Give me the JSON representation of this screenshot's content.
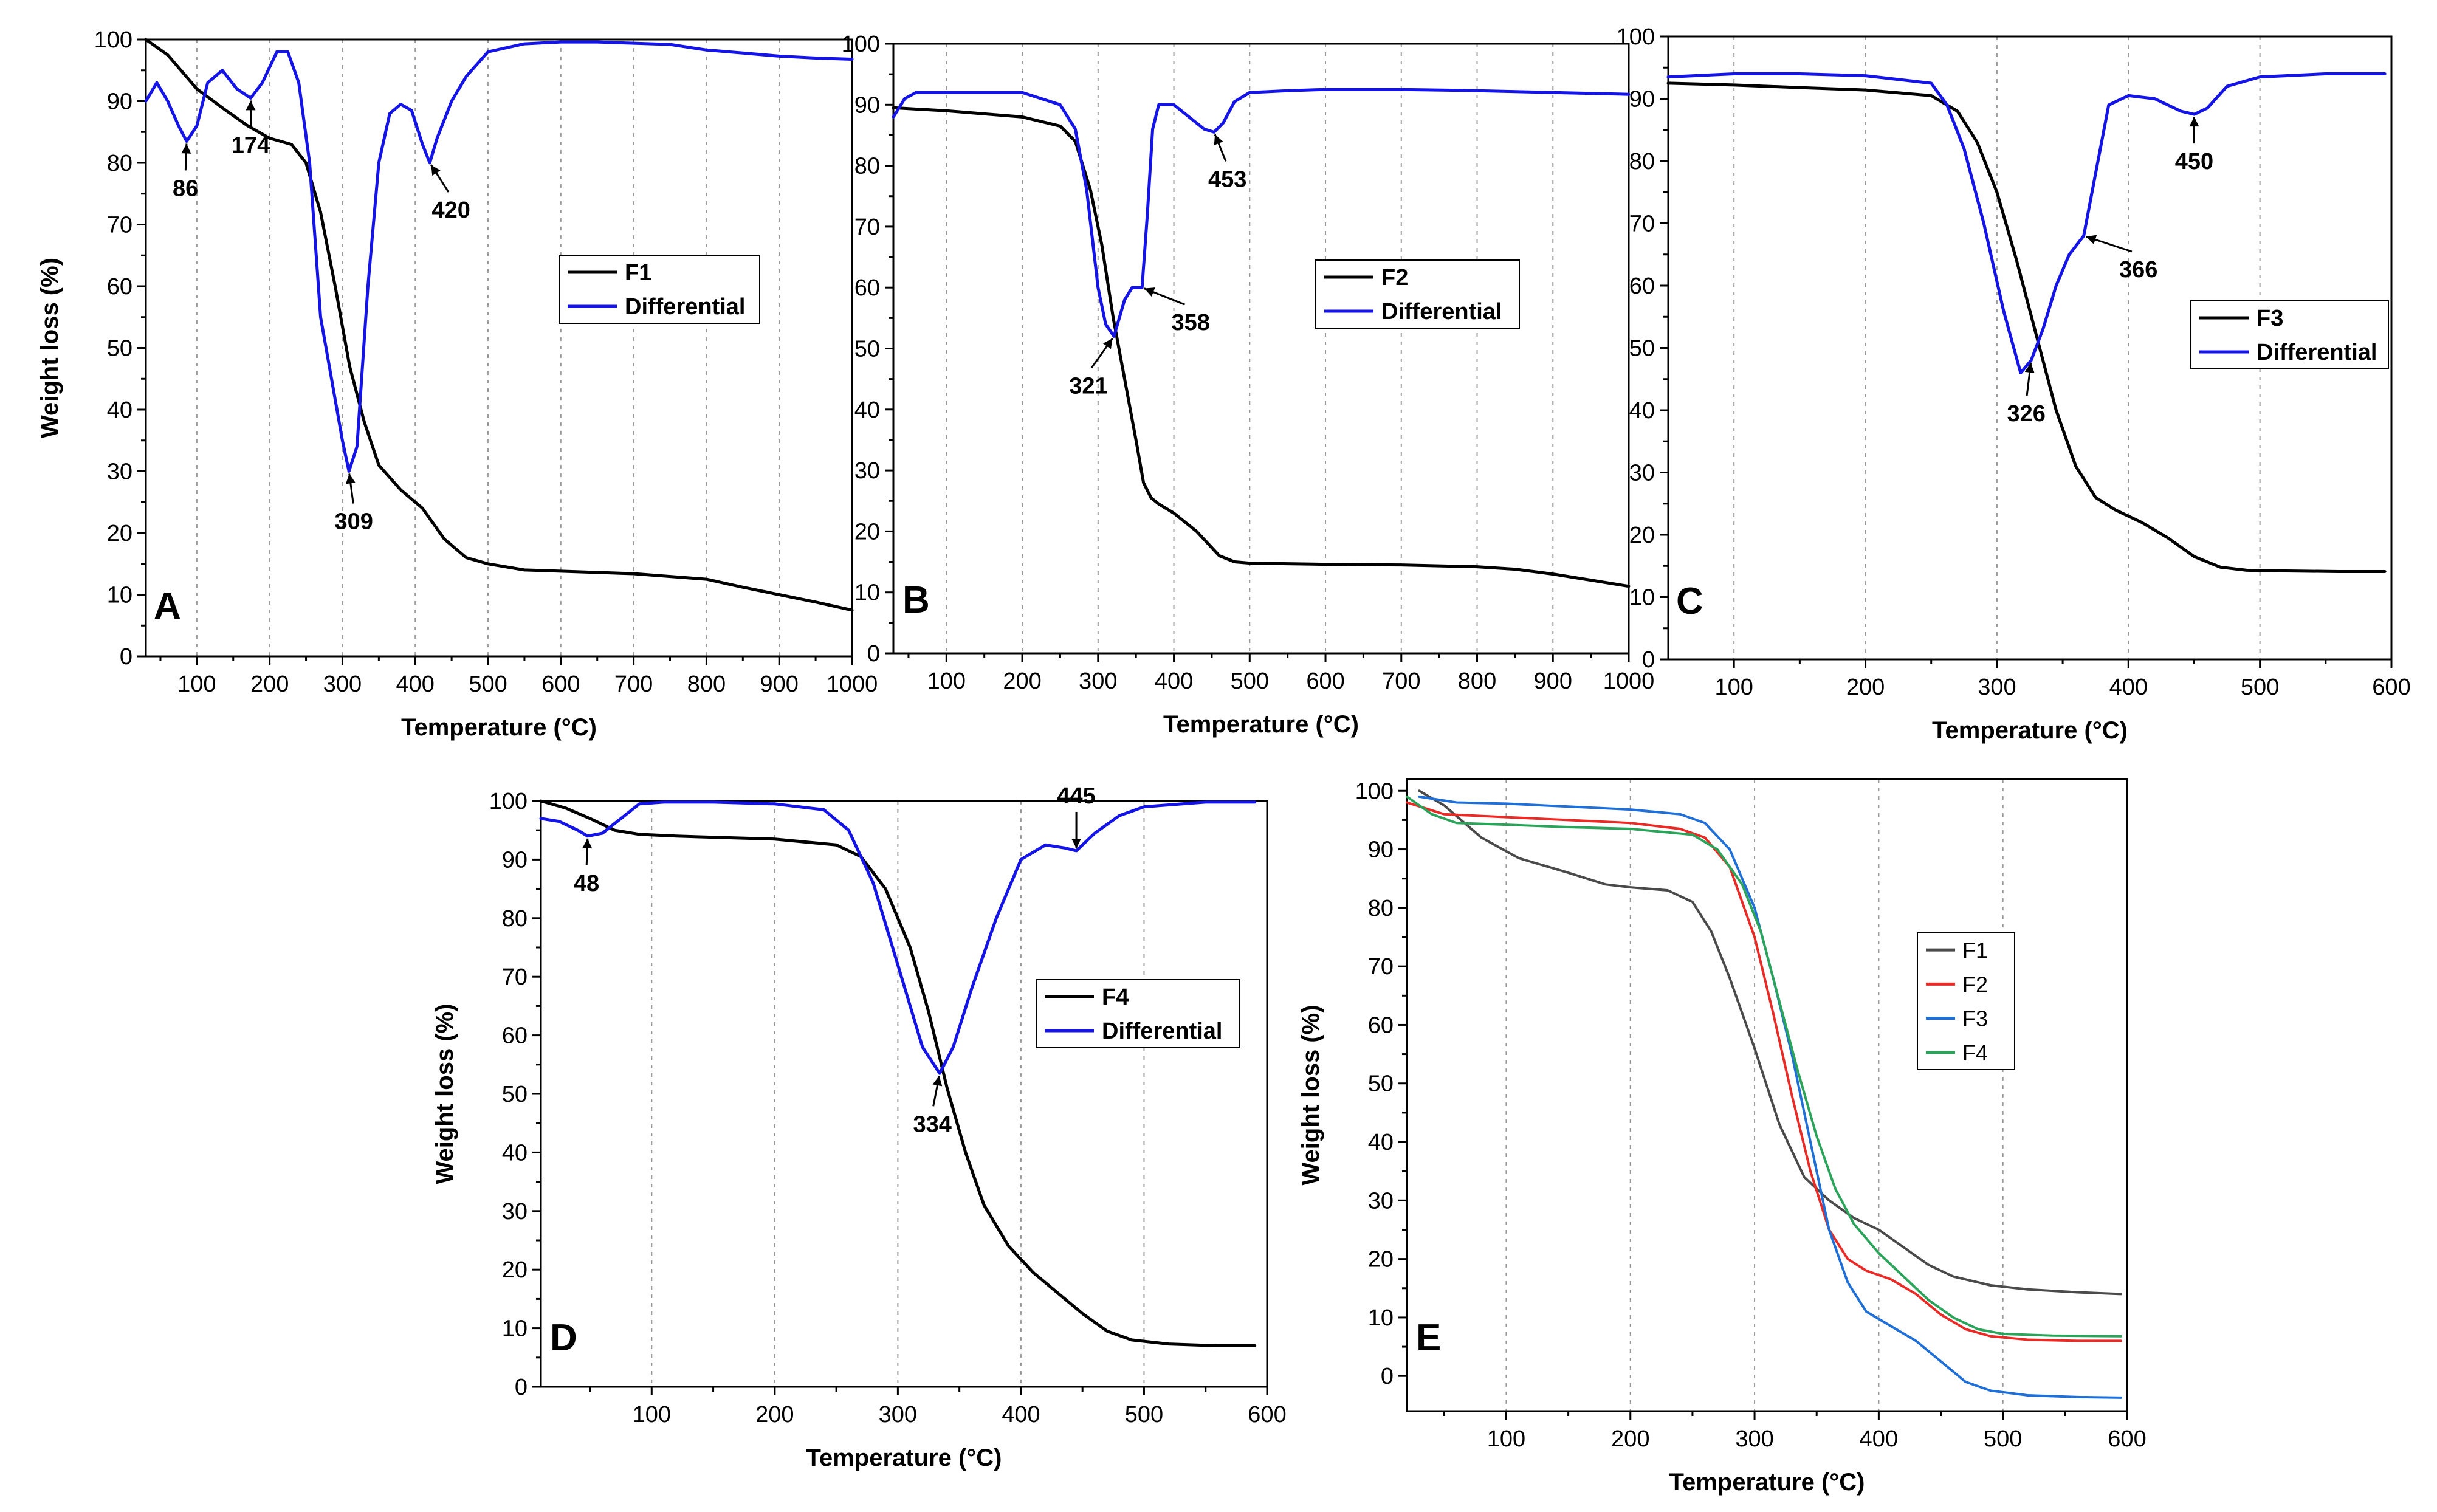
{
  "chart_data": [
    {
      "panel": "A",
      "type": "line",
      "xlabel": "Temperature (°C)",
      "ylabel": "Weight loss (%)",
      "xlim": [
        30,
        1000
      ],
      "ylim": [
        0,
        100
      ],
      "xticks": [
        100,
        200,
        300,
        400,
        500,
        600,
        700,
        800,
        900,
        1000
      ],
      "yticks": [
        0,
        10,
        20,
        30,
        40,
        50,
        60,
        70,
        80,
        90,
        100
      ],
      "grid": "vertical-dashed",
      "legend_position": "center-right",
      "series": [
        {
          "name": "F1",
          "color": "#000000",
          "x": [
            30,
            60,
            100,
            140,
            170,
            200,
            230,
            250,
            270,
            290,
            310,
            330,
            350,
            380,
            410,
            440,
            470,
            500,
            550,
            600,
            700,
            800,
            850,
            900,
            950,
            1000
          ],
          "y": [
            100,
            97.5,
            92,
            88.5,
            86,
            84,
            83,
            80,
            72,
            60,
            47,
            38,
            31,
            27,
            24,
            19,
            16,
            15,
            14,
            13.8,
            13.4,
            12.5,
            11.2,
            10,
            8.8,
            7.5
          ]
        },
        {
          "name": "Differential",
          "color": "#1414e6",
          "x": [
            30,
            45,
            60,
            75,
            86,
            100,
            115,
            135,
            155,
            174,
            190,
            210,
            225,
            240,
            255,
            270,
            285,
            300,
            309,
            320,
            335,
            350,
            365,
            380,
            395,
            410,
            420,
            430,
            450,
            470,
            500,
            550,
            600,
            650,
            700,
            750,
            800,
            850,
            900,
            950,
            1000
          ],
          "y": [
            90,
            93,
            90,
            86,
            83.5,
            86,
            93,
            95,
            92,
            90.5,
            93,
            98,
            98,
            93,
            80,
            55,
            45,
            35,
            30,
            34,
            60,
            80,
            88,
            89.5,
            88.5,
            83,
            80,
            84,
            90,
            94,
            98,
            99.3,
            99.6,
            99.6,
            99.4,
            99.2,
            98.3,
            97.8,
            97.3,
            97,
            96.8
          ]
        }
      ],
      "annotations": [
        {
          "label": "86",
          "x": 86,
          "y": 83.5
        },
        {
          "label": "174",
          "x": 174,
          "y": 90.5
        },
        {
          "label": "309",
          "x": 309,
          "y": 30
        },
        {
          "label": "420",
          "x": 420,
          "y": 80
        }
      ]
    },
    {
      "panel": "B",
      "type": "line",
      "xlabel": "Temperature (°C)",
      "ylabel": "",
      "xlim": [
        30,
        1000
      ],
      "ylim": [
        0,
        100
      ],
      "xticks": [
        100,
        200,
        300,
        400,
        500,
        600,
        700,
        800,
        900,
        1000
      ],
      "yticks": [
        0,
        10,
        20,
        30,
        40,
        50,
        60,
        70,
        80,
        90,
        100
      ],
      "grid": "vertical-dashed",
      "legend_position": "center-right",
      "series": [
        {
          "name": "F2",
          "color": "#000000",
          "x": [
            30,
            100,
            200,
            250,
            270,
            290,
            305,
            320,
            335,
            350,
            360,
            370,
            380,
            400,
            430,
            460,
            480,
            500,
            550,
            600,
            700,
            800,
            850,
            900,
            950,
            1000
          ],
          "y": [
            89.5,
            89,
            88,
            86.5,
            84,
            76,
            67,
            55,
            45,
            35,
            28,
            25.5,
            24.5,
            23,
            20,
            16,
            15,
            14.8,
            14.7,
            14.6,
            14.5,
            14.2,
            13.8,
            13,
            12,
            11
          ]
        },
        {
          "name": "Differential",
          "color": "#1414e6",
          "x": [
            30,
            45,
            60,
            100,
            200,
            250,
            270,
            285,
            300,
            310,
            321,
            335,
            345,
            358,
            365,
            372,
            380,
            400,
            420,
            440,
            453,
            465,
            480,
            500,
            550,
            600,
            700,
            800,
            900,
            1000
          ],
          "y": [
            88,
            91,
            92,
            92,
            92,
            90,
            86,
            76,
            60,
            54,
            52,
            58,
            60,
            60,
            72,
            86,
            90,
            90,
            88,
            86,
            85.5,
            87,
            90.5,
            92,
            92.3,
            92.5,
            92.5,
            92.3,
            92,
            91.7
          ]
        }
      ],
      "annotations": [
        {
          "label": "321",
          "x": 321,
          "y": 52
        },
        {
          "label": "358",
          "x": 358,
          "y": 60
        },
        {
          "label": "453",
          "x": 453,
          "y": 85.5
        }
      ]
    },
    {
      "panel": "C",
      "type": "line",
      "xlabel": "Temperature (°C)",
      "ylabel": "",
      "xlim": [
        50,
        600
      ],
      "ylim": [
        0,
        100
      ],
      "xticks": [
        100,
        200,
        300,
        400,
        500,
        600
      ],
      "yticks": [
        0,
        10,
        20,
        30,
        40,
        50,
        60,
        70,
        80,
        90,
        100
      ],
      "grid": "vertical-dashed",
      "legend_position": "center-right",
      "series": [
        {
          "name": "F3",
          "color": "#000000",
          "x": [
            50,
            100,
            150,
            200,
            250,
            270,
            285,
            300,
            315,
            330,
            345,
            360,
            375,
            390,
            410,
            430,
            450,
            470,
            490,
            520,
            560,
            595
          ],
          "y": [
            92.5,
            92.2,
            91.8,
            91.4,
            90.5,
            88,
            83,
            75,
            64,
            52,
            40,
            31,
            26,
            24,
            22,
            19.5,
            16.5,
            14.8,
            14.3,
            14.2,
            14.1,
            14.1
          ]
        },
        {
          "name": "Differential",
          "color": "#1414e6",
          "x": [
            50,
            100,
            150,
            200,
            250,
            262,
            275,
            290,
            305,
            318,
            326,
            335,
            345,
            355,
            366,
            375,
            385,
            400,
            420,
            440,
            450,
            460,
            475,
            500,
            550,
            595
          ],
          "y": [
            93.5,
            94,
            94,
            93.7,
            92.5,
            89,
            82,
            70,
            56,
            46,
            48,
            53,
            60,
            65,
            68,
            78,
            89,
            90.5,
            90,
            88,
            87.5,
            88.5,
            92,
            93.5,
            94,
            94
          ]
        }
      ],
      "annotations": [
        {
          "label": "326",
          "x": 326,
          "y": 48
        },
        {
          "label": "366",
          "x": 366,
          "y": 68
        },
        {
          "label": "450",
          "x": 450,
          "y": 87.5
        }
      ]
    },
    {
      "panel": "D",
      "type": "line",
      "xlabel": "Temperature (°C)",
      "ylabel": "Weight loss (%)",
      "xlim": [
        10,
        600
      ],
      "ylim": [
        0,
        100
      ],
      "xticks": [
        100,
        200,
        300,
        400,
        500,
        600
      ],
      "yticks": [
        0,
        10,
        20,
        30,
        40,
        50,
        60,
        70,
        80,
        90,
        100
      ],
      "grid": "vertical-dashed",
      "legend_position": "center-right",
      "series": [
        {
          "name": "F4",
          "color": "#000000",
          "x": [
            10,
            30,
            50,
            70,
            90,
            120,
            200,
            250,
            270,
            290,
            310,
            325,
            340,
            355,
            370,
            390,
            410,
            430,
            450,
            470,
            490,
            520,
            560,
            590
          ],
          "y": [
            100,
            98.8,
            97,
            95,
            94.3,
            94,
            93.5,
            92.5,
            90.5,
            85,
            75,
            64,
            51,
            40,
            31,
            24,
            19.5,
            16,
            12.5,
            9.5,
            8,
            7.3,
            7,
            7
          ]
        },
        {
          "name": "Differential",
          "color": "#1414e6",
          "x": [
            10,
            25,
            40,
            48,
            60,
            75,
            90,
            110,
            150,
            200,
            240,
            260,
            280,
            300,
            320,
            334,
            345,
            360,
            380,
            400,
            420,
            435,
            445,
            460,
            480,
            500,
            550,
            590
          ],
          "y": [
            97,
            96.5,
            95,
            94,
            94.5,
            97,
            99.5,
            99.8,
            99.8,
            99.5,
            98.5,
            95,
            86,
            72,
            58,
            53.5,
            58,
            68,
            80,
            90,
            92.5,
            92,
            91.5,
            94.5,
            97.5,
            99,
            99.8,
            99.8
          ]
        }
      ],
      "annotations": [
        {
          "label": "48",
          "x": 48,
          "y": 94
        },
        {
          "label": "334",
          "x": 334,
          "y": 53.5
        },
        {
          "label": "445",
          "x": 445,
          "y": 91.5
        }
      ]
    },
    {
      "panel": "E",
      "type": "line",
      "xlabel": "Temperature (°C)",
      "ylabel": "Weight loss (%)",
      "xlim": [
        20,
        600
      ],
      "ylim": [
        -6,
        102
      ],
      "xticks": [
        100,
        200,
        300,
        400,
        500,
        600
      ],
      "yticks": [
        0,
        10,
        20,
        30,
        40,
        50,
        60,
        70,
        80,
        90,
        100
      ],
      "grid": "vertical-dashed",
      "legend_position": "center-right",
      "series": [
        {
          "name": "F1",
          "color": "#4a4a4a",
          "x": [
            30,
            50,
            80,
            110,
            150,
            180,
            200,
            230,
            250,
            265,
            280,
            300,
            320,
            340,
            360,
            380,
            400,
            420,
            440,
            460,
            490,
            520,
            560,
            595
          ],
          "y": [
            100,
            97.5,
            92,
            88.5,
            86,
            84,
            83.5,
            83,
            81,
            76,
            68,
            56,
            43,
            34,
            30,
            27,
            25,
            22,
            19,
            17,
            15.5,
            14.8,
            14.3,
            14
          ]
        },
        {
          "name": "F2",
          "color": "#e82b26",
          "x": [
            20,
            50,
            100,
            150,
            200,
            240,
            260,
            280,
            300,
            315,
            330,
            345,
            360,
            375,
            390,
            410,
            430,
            450,
            470,
            490,
            520,
            560,
            595
          ],
          "y": [
            98,
            96,
            95.5,
            95,
            94.5,
            93.5,
            92,
            87,
            75,
            62,
            48,
            35,
            25,
            20,
            18,
            16.5,
            14,
            10.5,
            8,
            6.8,
            6.2,
            6,
            6
          ]
        },
        {
          "name": "F3",
          "color": "#1f6fd6",
          "x": [
            30,
            60,
            100,
            150,
            200,
            240,
            260,
            280,
            300,
            315,
            330,
            345,
            360,
            375,
            390,
            410,
            430,
            450,
            470,
            490,
            520,
            560,
            595
          ],
          "y": [
            99,
            98,
            97.8,
            97.3,
            96.8,
            96,
            94.5,
            90,
            80,
            68,
            55,
            40,
            25,
            16,
            11,
            8.5,
            6,
            2.5,
            -1,
            -2.5,
            -3.3,
            -3.6,
            -3.7
          ]
        },
        {
          "name": "F4",
          "color": "#2ca35a",
          "x": [
            20,
            40,
            60,
            100,
            150,
            200,
            250,
            270,
            290,
            305,
            320,
            335,
            350,
            365,
            380,
            400,
            420,
            440,
            460,
            480,
            500,
            540,
            595
          ],
          "y": [
            99,
            96,
            94.5,
            94.2,
            93.8,
            93.5,
            92.5,
            90,
            84,
            76,
            64,
            52,
            41,
            32,
            26,
            21,
            17,
            13,
            10,
            8,
            7.2,
            6.9,
            6.8
          ]
        }
      ]
    }
  ]
}
